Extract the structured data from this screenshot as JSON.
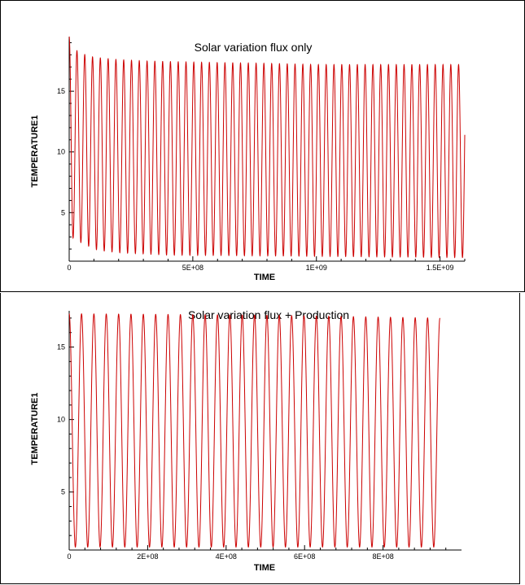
{
  "chart_data": [
    {
      "type": "line",
      "title": "Solar variation flux only",
      "xlabel": "TIME",
      "ylabel": "TEMPERATURE1",
      "xlim": [
        0,
        1600000000
      ],
      "ylim": [
        1,
        19.5
      ],
      "xticks": [
        0,
        500000000,
        1000000000,
        1500000000
      ],
      "xtick_labels": [
        "0",
        "5E+08",
        "1E+09",
        "1.5E+09"
      ],
      "yticks": [
        5,
        10,
        15
      ],
      "ytick_labels": [
        "5",
        "10",
        "15"
      ],
      "grid": false,
      "line_color": "#cc0000",
      "series": [
        {
          "period": 31500000,
          "x_end": 1600000000,
          "peaks": [
            [
              3000000,
              19.5
            ],
            [
              35000000,
              18.2
            ],
            [
              67000000,
              18.0
            ],
            [
              100000000,
              17.8
            ],
            [
              200000000,
              17.6
            ],
            [
              300000000,
              17.5
            ],
            [
              500000000,
              17.4
            ],
            [
              800000000,
              17.3
            ],
            [
              1000000000,
              17.2
            ],
            [
              1590000000,
              17.2
            ]
          ],
          "troughs": [
            [
              18000000,
              2.9
            ],
            [
              50000000,
              2.5
            ],
            [
              82000000,
              2.2
            ],
            [
              115000000,
              1.9
            ],
            [
              200000000,
              1.7
            ],
            [
              400000000,
              1.5
            ],
            [
              1000000000,
              1.4
            ],
            [
              1580000000,
              1.3
            ]
          ]
        }
      ]
    },
    {
      "type": "line",
      "title": "Solar variation flux + Production",
      "xlabel": "TIME",
      "ylabel": "TEMPERATURE1",
      "xlim": [
        0,
        1000000000
      ],
      "ylim": [
        1,
        17.5
      ],
      "xticks": [
        0,
        200000000,
        400000000,
        600000000,
        800000000
      ],
      "xtick_labels": [
        "0",
        "2E+08",
        "4E+08",
        "6E+08",
        "8E+08"
      ],
      "yticks": [
        5,
        10,
        15
      ],
      "ytick_labels": [
        "5",
        "10",
        "15"
      ],
      "grid": false,
      "line_color": "#cc0000",
      "series": [
        {
          "period": 31500000,
          "x_end": 945000000,
          "peaks": [
            [
              0,
              17.3
            ],
            [
              500000000,
              17.2
            ],
            [
              945000000,
              17.0
            ]
          ],
          "troughs": [
            [
              0,
              1.2
            ],
            [
              945000000,
              1.2
            ]
          ]
        }
      ]
    }
  ]
}
